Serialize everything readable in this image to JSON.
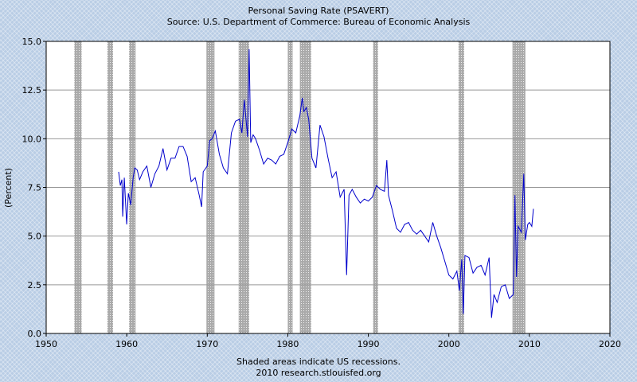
{
  "chart_data": {
    "type": "line",
    "title": "Personal Saving Rate (PSAVERT)",
    "subtitle": "Source: U.S. Department of Commerce: Bureau of Economic Analysis",
    "ylabel": "(Percent)",
    "xlabel": "",
    "xlim": [
      1950,
      2020
    ],
    "ylim": [
      0,
      15
    ],
    "xticks": [
      "1950",
      "1960",
      "1970",
      "1980",
      "1990",
      "2000",
      "2010",
      "2020"
    ],
    "yticks": [
      "0.0",
      "2.5",
      "5.0",
      "7.5",
      "10.0",
      "12.5",
      "15.0"
    ],
    "grid": true,
    "footer_line1": "Shaded areas indicate US recessions.",
    "footer_line2": "2010 research.stlouisfed.org",
    "colors": {
      "line": "#0000cc",
      "recession": "#999999",
      "plot_bg": "#ffffff",
      "grid": "#999999"
    },
    "recessions": [
      [
        1953.5,
        1954.4
      ],
      [
        1957.6,
        1958.3
      ],
      [
        1960.3,
        1961.1
      ],
      [
        1969.9,
        1970.9
      ],
      [
        1973.9,
        1975.2
      ],
      [
        1980.0,
        1980.6
      ],
      [
        1981.5,
        1982.9
      ],
      [
        1990.6,
        1991.2
      ],
      [
        2001.2,
        2001.9
      ],
      [
        2007.9,
        2009.5
      ]
    ],
    "series": [
      {
        "x": [
          1959.0,
          1959.2,
          1959.4,
          1959.5,
          1959.7,
          1960.0,
          1960.2,
          1960.5,
          1960.8,
          1961.0,
          1961.3,
          1961.6,
          1962.0,
          1962.5,
          1963.0,
          1963.5,
          1964.0,
          1964.5,
          1965.0,
          1965.5,
          1966.0,
          1966.5,
          1967.0,
          1967.5,
          1968.0,
          1968.5,
          1969.0,
          1969.3,
          1969.5,
          1970.0,
          1970.3,
          1970.6,
          1971.0,
          1971.5,
          1972.0,
          1972.5,
          1973.0,
          1973.5,
          1974.0,
          1974.3,
          1974.6,
          1975.0,
          1975.2,
          1975.4,
          1975.7,
          1976.0,
          1976.5,
          1977.0,
          1977.5,
          1978.0,
          1978.5,
          1979.0,
          1979.5,
          1980.0,
          1980.5,
          1981.0,
          1981.5,
          1981.8,
          1982.0,
          1982.3,
          1982.6,
          1983.0,
          1983.5,
          1984.0,
          1984.5,
          1985.0,
          1985.5,
          1986.0,
          1986.5,
          1987.0,
          1987.3,
          1987.6,
          1988.0,
          1988.5,
          1989.0,
          1989.5,
          1990.0,
          1990.5,
          1991.0,
          1991.5,
          1992.0,
          1992.3,
          1992.5,
          1993.0,
          1993.5,
          1994.0,
          1994.5,
          1995.0,
          1995.5,
          1996.0,
          1996.5,
          1997.0,
          1997.5,
          1998.0,
          1998.5,
          1999.0,
          1999.5,
          2000.0,
          2000.5,
          2001.0,
          2001.3,
          2001.6,
          2001.8,
          2002.0,
          2002.5,
          2003.0,
          2003.5,
          2004.0,
          2004.5,
          2005.0,
          2005.3,
          2005.6,
          2006.0,
          2006.5,
          2007.0,
          2007.5,
          2008.0,
          2008.2,
          2008.4,
          2008.6,
          2009.0,
          2009.3,
          2009.5,
          2009.8,
          2010.0,
          2010.3,
          2010.5
        ],
        "y": [
          8.3,
          7.6,
          7.9,
          6.0,
          8.0,
          5.6,
          7.2,
          6.6,
          8.0,
          8.5,
          8.4,
          7.9,
          8.3,
          8.6,
          7.5,
          8.2,
          8.6,
          9.5,
          8.4,
          9.0,
          9.0,
          9.6,
          9.6,
          9.1,
          7.8,
          8.0,
          7.1,
          6.5,
          8.3,
          8.6,
          9.9,
          10.0,
          10.4,
          9.2,
          8.5,
          8.2,
          10.3,
          10.9,
          11.0,
          10.3,
          12.0,
          10.1,
          14.6,
          9.8,
          10.2,
          10.0,
          9.4,
          8.7,
          9.0,
          8.9,
          8.7,
          9.1,
          9.2,
          9.8,
          10.5,
          10.3,
          11.2,
          12.1,
          11.4,
          11.6,
          11.0,
          9.0,
          8.5,
          10.7,
          10.1,
          9.0,
          8.0,
          8.3,
          7.0,
          7.4,
          3.0,
          7.1,
          7.4,
          7.0,
          6.7,
          6.9,
          6.8,
          7.0,
          7.6,
          7.4,
          7.3,
          8.9,
          7.1,
          6.3,
          5.4,
          5.2,
          5.6,
          5.7,
          5.3,
          5.1,
          5.3,
          5.0,
          4.7,
          5.7,
          5.0,
          4.4,
          3.7,
          3.0,
          2.8,
          3.2,
          2.2,
          3.8,
          1.0,
          4.0,
          3.9,
          3.1,
          3.4,
          3.5,
          3.0,
          3.9,
          0.8,
          2.0,
          1.6,
          2.4,
          2.5,
          1.8,
          2.0,
          7.1,
          2.9,
          5.5,
          5.2,
          8.2,
          4.8,
          5.6,
          5.7,
          5.5,
          6.4
        ]
      }
    ]
  }
}
